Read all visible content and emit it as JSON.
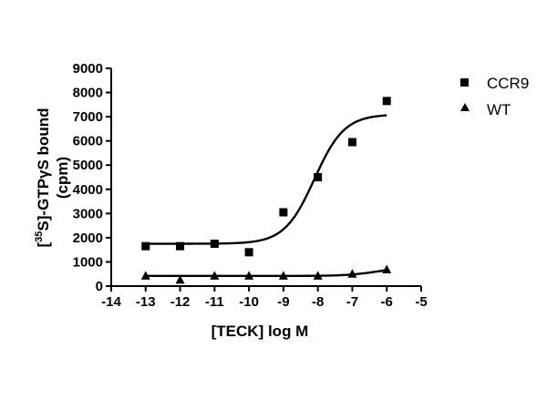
{
  "chart_data": {
    "type": "scatter",
    "xlabel": "[TECK] log M",
    "ylabel_parts": {
      "open": "[",
      "sup": "35",
      "rest": "S]-GTPγS bound",
      "line2": "(cpm)"
    },
    "xlim": [
      -14,
      -5
    ],
    "ylim": [
      0,
      9000
    ],
    "x_ticks": [
      "-14",
      "-13",
      "-12",
      "-11",
      "-10",
      "-9",
      "-8",
      "-7",
      "-6",
      "-5"
    ],
    "y_ticks": [
      "0",
      "1000",
      "2000",
      "3000",
      "4000",
      "5000",
      "6000",
      "7000",
      "8000",
      "9000"
    ],
    "grid": false,
    "legend_position": "top-right",
    "series": [
      {
        "name": "CCR9",
        "marker": "square",
        "points": [
          {
            "x": -13,
            "y": 1650
          },
          {
            "x": -12,
            "y": 1650
          },
          {
            "x": -11,
            "y": 1750
          },
          {
            "x": -10,
            "y": 1400
          },
          {
            "x": -9,
            "y": 3050
          },
          {
            "x": -8,
            "y": 4500
          },
          {
            "x": -7,
            "y": 5950
          },
          {
            "x": -6,
            "y": 7650
          }
        ],
        "fit": {
          "bottom": 1750,
          "top": 7100,
          "log_ec50": -8.1,
          "hill": 1
        }
      },
      {
        "name": "WT",
        "marker": "triangle",
        "points": [
          {
            "x": -13,
            "y": 420
          },
          {
            "x": -12,
            "y": 250
          },
          {
            "x": -11,
            "y": 420
          },
          {
            "x": -10,
            "y": 420
          },
          {
            "x": -9,
            "y": 420
          },
          {
            "x": -8,
            "y": 420
          },
          {
            "x": -7,
            "y": 500
          },
          {
            "x": -6,
            "y": 680
          }
        ],
        "fit": {
          "bottom": 420,
          "top": 780,
          "log_ec50": -6.3,
          "hill": 1
        }
      }
    ]
  },
  "colors": {
    "ink": "#000000",
    "background": "#ffffff"
  }
}
